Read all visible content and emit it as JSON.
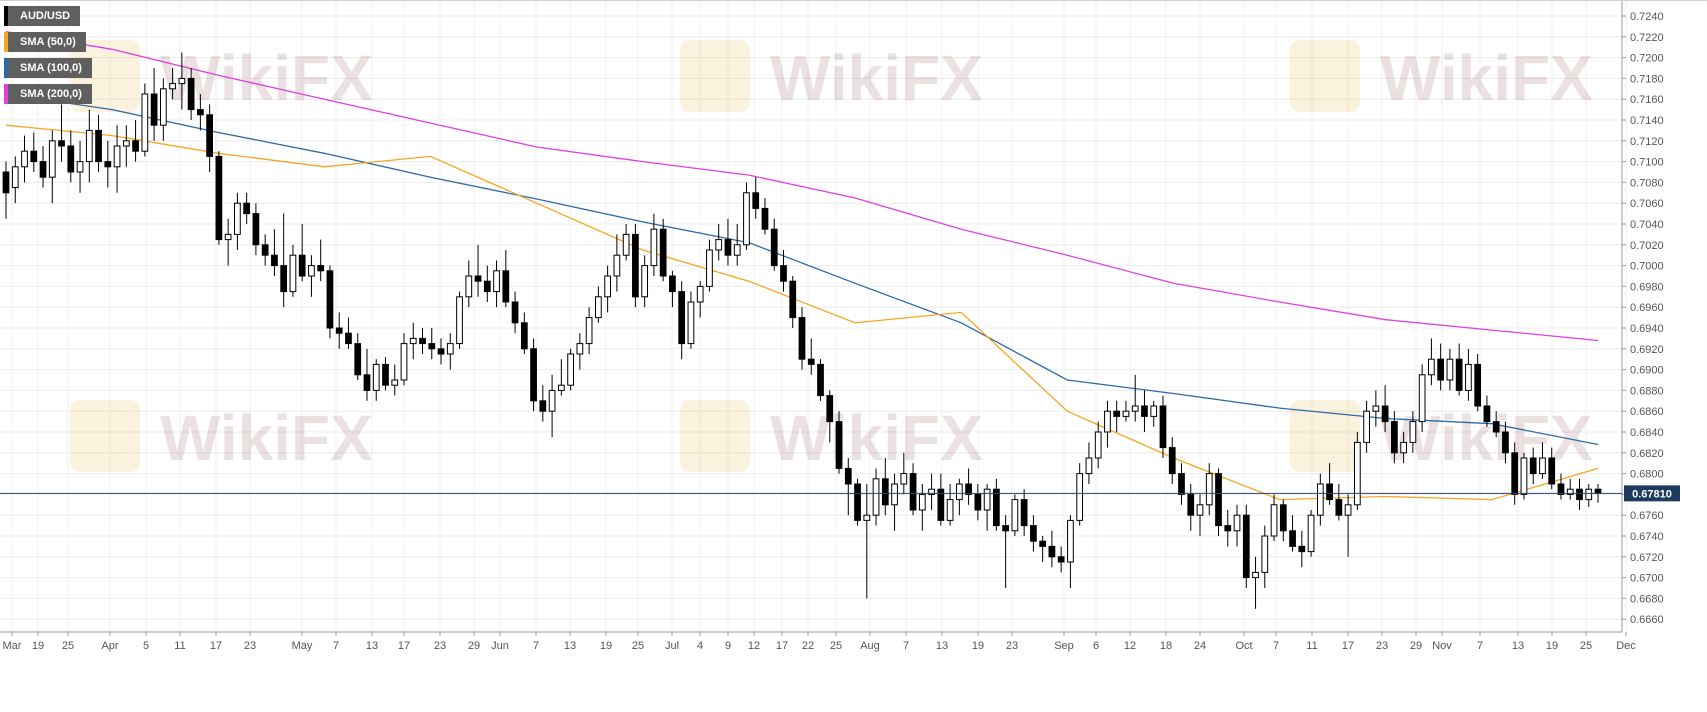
{
  "legend": [
    {
      "label": "AUD/USD",
      "color": "#000000"
    },
    {
      "label": "SMA (50,0)",
      "color": "#f5a623"
    },
    {
      "label": "SMA (100,0)",
      "color": "#2e6aa8"
    },
    {
      "label": "SMA (200,0)",
      "color": "#e040e0"
    }
  ],
  "watermark": "WikiFX",
  "chart_data": {
    "type": "candlestick",
    "symbol": "AUD/USD",
    "ylim": [
      0.665,
      0.725
    ],
    "y_ticks": [
      "0.7240",
      "0.7220",
      "0.7200",
      "0.7180",
      "0.7160",
      "0.7140",
      "0.7120",
      "0.7100",
      "0.7080",
      "0.7060",
      "0.7040",
      "0.7020",
      "0.7000",
      "0.6980",
      "0.6960",
      "0.6940",
      "0.6920",
      "0.6900",
      "0.6880",
      "0.6860",
      "0.6840",
      "0.6820",
      "0.6800",
      "0.6780",
      "0.6760",
      "0.6740",
      "0.6720",
      "0.6700",
      "0.6680",
      "0.6660"
    ],
    "x_ticks": [
      "Mar",
      "19",
      "25",
      "Apr",
      "5",
      "11",
      "17",
      "23",
      "May",
      "7",
      "13",
      "17",
      "23",
      "29",
      "Jun",
      "7",
      "13",
      "19",
      "25",
      "Jul",
      "4",
      "9",
      "12",
      "17",
      "22",
      "25",
      "Aug",
      "7",
      "13",
      "19",
      "23",
      "Sep",
      "6",
      "12",
      "18",
      "24",
      "Oct",
      "7",
      "11",
      "17",
      "23",
      "29",
      "Nov",
      "7",
      "13",
      "19",
      "25",
      "Dec"
    ],
    "last_price": "0.67810",
    "grid": true,
    "sma_50": [
      0.7135,
      0.7125,
      0.7108,
      0.7095,
      0.7105,
      0.706,
      0.7015,
      0.6985,
      0.6945,
      0.6955,
      0.686,
      0.6815,
      0.6775,
      0.6778,
      0.6775,
      0.6805
    ],
    "sma_100": [
      0.7165,
      0.715,
      0.7128,
      0.7108,
      0.7085,
      0.7064,
      0.7042,
      0.7022,
      0.6983,
      0.6945,
      0.689,
      0.6877,
      0.6863,
      0.6853,
      0.6848,
      0.6828
    ],
    "sma_200": [
      0.7225,
      0.7208,
      0.7183,
      0.716,
      0.7137,
      0.7114,
      0.71,
      0.7087,
      0.7065,
      0.7035,
      0.701,
      0.6983,
      0.6965,
      0.6948,
      0.6938,
      0.6928
    ],
    "candles": [
      {
        "o": 0.709,
        "h": 0.71,
        "l": 0.7045,
        "c": 0.707
      },
      {
        "o": 0.7075,
        "h": 0.7105,
        "l": 0.706,
        "c": 0.7095
      },
      {
        "o": 0.7095,
        "h": 0.7125,
        "l": 0.708,
        "c": 0.711
      },
      {
        "o": 0.711,
        "h": 0.7128,
        "l": 0.709,
        "c": 0.71
      },
      {
        "o": 0.71,
        "h": 0.7115,
        "l": 0.7075,
        "c": 0.7085
      },
      {
        "o": 0.7085,
        "h": 0.713,
        "l": 0.706,
        "c": 0.712
      },
      {
        "o": 0.712,
        "h": 0.7155,
        "l": 0.71,
        "c": 0.7115
      },
      {
        "o": 0.7115,
        "h": 0.713,
        "l": 0.708,
        "c": 0.709
      },
      {
        "o": 0.709,
        "h": 0.712,
        "l": 0.707,
        "c": 0.71
      },
      {
        "o": 0.71,
        "h": 0.715,
        "l": 0.708,
        "c": 0.713
      },
      {
        "o": 0.713,
        "h": 0.7145,
        "l": 0.709,
        "c": 0.71
      },
      {
        "o": 0.71,
        "h": 0.712,
        "l": 0.7075,
        "c": 0.7095
      },
      {
        "o": 0.7095,
        "h": 0.7135,
        "l": 0.707,
        "c": 0.7115
      },
      {
        "o": 0.7115,
        "h": 0.7135,
        "l": 0.7095,
        "c": 0.712
      },
      {
        "o": 0.712,
        "h": 0.714,
        "l": 0.71,
        "c": 0.711
      },
      {
        "o": 0.711,
        "h": 0.7175,
        "l": 0.7105,
        "c": 0.7165
      },
      {
        "o": 0.7165,
        "h": 0.719,
        "l": 0.712,
        "c": 0.7135
      },
      {
        "o": 0.7135,
        "h": 0.718,
        "l": 0.712,
        "c": 0.717
      },
      {
        "o": 0.717,
        "h": 0.719,
        "l": 0.716,
        "c": 0.7175
      },
      {
        "o": 0.7175,
        "h": 0.7205,
        "l": 0.715,
        "c": 0.718
      },
      {
        "o": 0.718,
        "h": 0.719,
        "l": 0.714,
        "c": 0.715
      },
      {
        "o": 0.715,
        "h": 0.7165,
        "l": 0.713,
        "c": 0.7145
      },
      {
        "o": 0.7145,
        "h": 0.7155,
        "l": 0.709,
        "c": 0.7105
      },
      {
        "o": 0.7105,
        "h": 0.711,
        "l": 0.702,
        "c": 0.7025
      },
      {
        "o": 0.7025,
        "h": 0.7045,
        "l": 0.7,
        "c": 0.703
      },
      {
        "o": 0.703,
        "h": 0.707,
        "l": 0.7015,
        "c": 0.706
      },
      {
        "o": 0.706,
        "h": 0.707,
        "l": 0.704,
        "c": 0.705
      },
      {
        "o": 0.705,
        "h": 0.706,
        "l": 0.701,
        "c": 0.702
      },
      {
        "o": 0.702,
        "h": 0.703,
        "l": 0.7,
        "c": 0.701
      },
      {
        "o": 0.701,
        "h": 0.7035,
        "l": 0.699,
        "c": 0.7
      },
      {
        "o": 0.7,
        "h": 0.705,
        "l": 0.696,
        "c": 0.6975
      },
      {
        "o": 0.6975,
        "h": 0.702,
        "l": 0.697,
        "c": 0.701
      },
      {
        "o": 0.701,
        "h": 0.704,
        "l": 0.6985,
        "c": 0.699
      },
      {
        "o": 0.699,
        "h": 0.701,
        "l": 0.697,
        "c": 0.7
      },
      {
        "o": 0.7,
        "h": 0.7025,
        "l": 0.6985,
        "c": 0.6995
      },
      {
        "o": 0.6995,
        "h": 0.7,
        "l": 0.693,
        "c": 0.694
      },
      {
        "o": 0.694,
        "h": 0.6955,
        "l": 0.692,
        "c": 0.6935
      },
      {
        "o": 0.6935,
        "h": 0.695,
        "l": 0.692,
        "c": 0.6925
      },
      {
        "o": 0.6925,
        "h": 0.6935,
        "l": 0.689,
        "c": 0.6895
      },
      {
        "o": 0.6895,
        "h": 0.692,
        "l": 0.687,
        "c": 0.688
      },
      {
        "o": 0.688,
        "h": 0.691,
        "l": 0.687,
        "c": 0.6905
      },
      {
        "o": 0.6905,
        "h": 0.6912,
        "l": 0.688,
        "c": 0.6885
      },
      {
        "o": 0.6885,
        "h": 0.6905,
        "l": 0.6875,
        "c": 0.689
      },
      {
        "o": 0.689,
        "h": 0.6935,
        "l": 0.6885,
        "c": 0.6925
      },
      {
        "o": 0.6925,
        "h": 0.6945,
        "l": 0.691,
        "c": 0.693
      },
      {
        "o": 0.693,
        "h": 0.694,
        "l": 0.6915,
        "c": 0.6925
      },
      {
        "o": 0.6925,
        "h": 0.694,
        "l": 0.691,
        "c": 0.692
      },
      {
        "o": 0.692,
        "h": 0.693,
        "l": 0.6905,
        "c": 0.6915
      },
      {
        "o": 0.6915,
        "h": 0.6935,
        "l": 0.69,
        "c": 0.6925
      },
      {
        "o": 0.6925,
        "h": 0.6975,
        "l": 0.692,
        "c": 0.697
      },
      {
        "o": 0.697,
        "h": 0.7005,
        "l": 0.696,
        "c": 0.699
      },
      {
        "o": 0.699,
        "h": 0.702,
        "l": 0.697,
        "c": 0.6985
      },
      {
        "o": 0.6985,
        "h": 0.7,
        "l": 0.6965,
        "c": 0.6975
      },
      {
        "o": 0.6975,
        "h": 0.7005,
        "l": 0.696,
        "c": 0.6995
      },
      {
        "o": 0.6995,
        "h": 0.7015,
        "l": 0.696,
        "c": 0.6965
      },
      {
        "o": 0.6965,
        "h": 0.6975,
        "l": 0.6935,
        "c": 0.6945
      },
      {
        "o": 0.6945,
        "h": 0.6955,
        "l": 0.6915,
        "c": 0.692
      },
      {
        "o": 0.692,
        "h": 0.693,
        "l": 0.686,
        "c": 0.687
      },
      {
        "o": 0.687,
        "h": 0.6885,
        "l": 0.685,
        "c": 0.686
      },
      {
        "o": 0.686,
        "h": 0.6895,
        "l": 0.6835,
        "c": 0.688
      },
      {
        "o": 0.688,
        "h": 0.691,
        "l": 0.6875,
        "c": 0.6885
      },
      {
        "o": 0.6885,
        "h": 0.692,
        "l": 0.688,
        "c": 0.6915
      },
      {
        "o": 0.6915,
        "h": 0.6935,
        "l": 0.69,
        "c": 0.6925
      },
      {
        "o": 0.6925,
        "h": 0.696,
        "l": 0.6915,
        "c": 0.695
      },
      {
        "o": 0.695,
        "h": 0.698,
        "l": 0.6945,
        "c": 0.697
      },
      {
        "o": 0.697,
        "h": 0.7,
        "l": 0.6955,
        "c": 0.699
      },
      {
        "o": 0.699,
        "h": 0.703,
        "l": 0.6975,
        "c": 0.701
      },
      {
        "o": 0.701,
        "h": 0.704,
        "l": 0.7005,
        "c": 0.703
      },
      {
        "o": 0.703,
        "h": 0.704,
        "l": 0.696,
        "c": 0.697
      },
      {
        "o": 0.697,
        "h": 0.701,
        "l": 0.696,
        "c": 0.7
      },
      {
        "o": 0.7,
        "h": 0.705,
        "l": 0.699,
        "c": 0.7035
      },
      {
        "o": 0.7035,
        "h": 0.7045,
        "l": 0.6985,
        "c": 0.699
      },
      {
        "o": 0.699,
        "h": 0.6995,
        "l": 0.696,
        "c": 0.6975
      },
      {
        "o": 0.6975,
        "h": 0.6985,
        "l": 0.691,
        "c": 0.6925
      },
      {
        "o": 0.6925,
        "h": 0.6975,
        "l": 0.692,
        "c": 0.6965
      },
      {
        "o": 0.6965,
        "h": 0.6985,
        "l": 0.695,
        "c": 0.698
      },
      {
        "o": 0.698,
        "h": 0.7025,
        "l": 0.6975,
        "c": 0.7015
      },
      {
        "o": 0.7015,
        "h": 0.704,
        "l": 0.7005,
        "c": 0.7025
      },
      {
        "o": 0.7025,
        "h": 0.7045,
        "l": 0.7,
        "c": 0.701
      },
      {
        "o": 0.701,
        "h": 0.704,
        "l": 0.7,
        "c": 0.702
      },
      {
        "o": 0.702,
        "h": 0.708,
        "l": 0.7015,
        "c": 0.707
      },
      {
        "o": 0.707,
        "h": 0.7085,
        "l": 0.7045,
        "c": 0.7055
      },
      {
        "o": 0.7055,
        "h": 0.7065,
        "l": 0.703,
        "c": 0.7035
      },
      {
        "o": 0.7035,
        "h": 0.7045,
        "l": 0.6995,
        "c": 0.7
      },
      {
        "o": 0.7,
        "h": 0.7015,
        "l": 0.6975,
        "c": 0.6985
      },
      {
        "o": 0.6985,
        "h": 0.699,
        "l": 0.694,
        "c": 0.695
      },
      {
        "o": 0.695,
        "h": 0.696,
        "l": 0.69,
        "c": 0.691
      },
      {
        "o": 0.691,
        "h": 0.693,
        "l": 0.6895,
        "c": 0.6905
      },
      {
        "o": 0.6905,
        "h": 0.691,
        "l": 0.687,
        "c": 0.6875
      },
      {
        "o": 0.6875,
        "h": 0.688,
        "l": 0.683,
        "c": 0.685
      },
      {
        "o": 0.685,
        "h": 0.686,
        "l": 0.68,
        "c": 0.6805
      },
      {
        "o": 0.6805,
        "h": 0.6815,
        "l": 0.676,
        "c": 0.679
      },
      {
        "o": 0.679,
        "h": 0.6795,
        "l": 0.675,
        "c": 0.6755
      },
      {
        "o": 0.6755,
        "h": 0.679,
        "l": 0.668,
        "c": 0.676
      },
      {
        "o": 0.676,
        "h": 0.6805,
        "l": 0.675,
        "c": 0.6795
      },
      {
        "o": 0.6795,
        "h": 0.6815,
        "l": 0.676,
        "c": 0.677
      },
      {
        "o": 0.677,
        "h": 0.68,
        "l": 0.6745,
        "c": 0.679
      },
      {
        "o": 0.679,
        "h": 0.682,
        "l": 0.678,
        "c": 0.68
      },
      {
        "o": 0.68,
        "h": 0.681,
        "l": 0.676,
        "c": 0.6765
      },
      {
        "o": 0.6765,
        "h": 0.679,
        "l": 0.6745,
        "c": 0.678
      },
      {
        "o": 0.678,
        "h": 0.68,
        "l": 0.6765,
        "c": 0.6785
      },
      {
        "o": 0.6785,
        "h": 0.68,
        "l": 0.675,
        "c": 0.6755
      },
      {
        "o": 0.6755,
        "h": 0.679,
        "l": 0.675,
        "c": 0.6775
      },
      {
        "o": 0.6775,
        "h": 0.6795,
        "l": 0.676,
        "c": 0.679
      },
      {
        "o": 0.679,
        "h": 0.6805,
        "l": 0.677,
        "c": 0.678
      },
      {
        "o": 0.678,
        "h": 0.679,
        "l": 0.6755,
        "c": 0.6765
      },
      {
        "o": 0.6765,
        "h": 0.679,
        "l": 0.6745,
        "c": 0.6785
      },
      {
        "o": 0.6785,
        "h": 0.6795,
        "l": 0.6745,
        "c": 0.675
      },
      {
        "o": 0.675,
        "h": 0.676,
        "l": 0.669,
        "c": 0.6745
      },
      {
        "o": 0.6745,
        "h": 0.678,
        "l": 0.674,
        "c": 0.6775
      },
      {
        "o": 0.6775,
        "h": 0.6785,
        "l": 0.674,
        "c": 0.675
      },
      {
        "o": 0.675,
        "h": 0.676,
        "l": 0.6725,
        "c": 0.6735
      },
      {
        "o": 0.6735,
        "h": 0.674,
        "l": 0.6715,
        "c": 0.673
      },
      {
        "o": 0.673,
        "h": 0.6745,
        "l": 0.671,
        "c": 0.672
      },
      {
        "o": 0.672,
        "h": 0.673,
        "l": 0.6705,
        "c": 0.6715
      },
      {
        "o": 0.6715,
        "h": 0.676,
        "l": 0.669,
        "c": 0.6755
      },
      {
        "o": 0.6755,
        "h": 0.681,
        "l": 0.675,
        "c": 0.68
      },
      {
        "o": 0.68,
        "h": 0.683,
        "l": 0.679,
        "c": 0.6815
      },
      {
        "o": 0.6815,
        "h": 0.685,
        "l": 0.6805,
        "c": 0.684
      },
      {
        "o": 0.684,
        "h": 0.687,
        "l": 0.6825,
        "c": 0.686
      },
      {
        "o": 0.686,
        "h": 0.687,
        "l": 0.684,
        "c": 0.6855
      },
      {
        "o": 0.6855,
        "h": 0.687,
        "l": 0.685,
        "c": 0.686
      },
      {
        "o": 0.686,
        "h": 0.6895,
        "l": 0.685,
        "c": 0.6865
      },
      {
        "o": 0.6865,
        "h": 0.688,
        "l": 0.684,
        "c": 0.6855
      },
      {
        "o": 0.6855,
        "h": 0.687,
        "l": 0.6845,
        "c": 0.6865
      },
      {
        "o": 0.6865,
        "h": 0.6875,
        "l": 0.6815,
        "c": 0.6825
      },
      {
        "o": 0.6825,
        "h": 0.6835,
        "l": 0.679,
        "c": 0.68
      },
      {
        "o": 0.68,
        "h": 0.681,
        "l": 0.677,
        "c": 0.678
      },
      {
        "o": 0.678,
        "h": 0.679,
        "l": 0.6745,
        "c": 0.676
      },
      {
        "o": 0.676,
        "h": 0.678,
        "l": 0.674,
        "c": 0.677
      },
      {
        "o": 0.677,
        "h": 0.681,
        "l": 0.676,
        "c": 0.68
      },
      {
        "o": 0.68,
        "h": 0.6805,
        "l": 0.674,
        "c": 0.675
      },
      {
        "o": 0.675,
        "h": 0.6765,
        "l": 0.673,
        "c": 0.6745
      },
      {
        "o": 0.6745,
        "h": 0.677,
        "l": 0.673,
        "c": 0.676
      },
      {
        "o": 0.676,
        "h": 0.677,
        "l": 0.669,
        "c": 0.67
      },
      {
        "o": 0.67,
        "h": 0.672,
        "l": 0.667,
        "c": 0.6705
      },
      {
        "o": 0.6705,
        "h": 0.675,
        "l": 0.669,
        "c": 0.674
      },
      {
        "o": 0.674,
        "h": 0.678,
        "l": 0.6735,
        "c": 0.677
      },
      {
        "o": 0.677,
        "h": 0.6775,
        "l": 0.6735,
        "c": 0.6745
      },
      {
        "o": 0.6745,
        "h": 0.676,
        "l": 0.6725,
        "c": 0.673
      },
      {
        "o": 0.673,
        "h": 0.6745,
        "l": 0.671,
        "c": 0.6725
      },
      {
        "o": 0.6725,
        "h": 0.6765,
        "l": 0.672,
        "c": 0.676
      },
      {
        "o": 0.676,
        "h": 0.68,
        "l": 0.675,
        "c": 0.679
      },
      {
        "o": 0.679,
        "h": 0.681,
        "l": 0.677,
        "c": 0.6775
      },
      {
        "o": 0.6775,
        "h": 0.679,
        "l": 0.6755,
        "c": 0.676
      },
      {
        "o": 0.676,
        "h": 0.678,
        "l": 0.672,
        "c": 0.677
      },
      {
        "o": 0.677,
        "h": 0.684,
        "l": 0.6765,
        "c": 0.683
      },
      {
        "o": 0.683,
        "h": 0.687,
        "l": 0.682,
        "c": 0.686
      },
      {
        "o": 0.686,
        "h": 0.688,
        "l": 0.6845,
        "c": 0.6865
      },
      {
        "o": 0.6865,
        "h": 0.6885,
        "l": 0.684,
        "c": 0.685
      },
      {
        "o": 0.685,
        "h": 0.686,
        "l": 0.681,
        "c": 0.682
      },
      {
        "o": 0.682,
        "h": 0.684,
        "l": 0.681,
        "c": 0.683
      },
      {
        "o": 0.683,
        "h": 0.686,
        "l": 0.682,
        "c": 0.685
      },
      {
        "o": 0.685,
        "h": 0.6905,
        "l": 0.684,
        "c": 0.6895
      },
      {
        "o": 0.6895,
        "h": 0.693,
        "l": 0.6885,
        "c": 0.691
      },
      {
        "o": 0.691,
        "h": 0.6925,
        "l": 0.688,
        "c": 0.689
      },
      {
        "o": 0.689,
        "h": 0.692,
        "l": 0.688,
        "c": 0.691
      },
      {
        "o": 0.691,
        "h": 0.6925,
        "l": 0.6875,
        "c": 0.688
      },
      {
        "o": 0.688,
        "h": 0.692,
        "l": 0.687,
        "c": 0.6905
      },
      {
        "o": 0.6905,
        "h": 0.6915,
        "l": 0.686,
        "c": 0.6865
      },
      {
        "o": 0.6865,
        "h": 0.6875,
        "l": 0.6845,
        "c": 0.685
      },
      {
        "o": 0.685,
        "h": 0.686,
        "l": 0.6835,
        "c": 0.684
      },
      {
        "o": 0.684,
        "h": 0.685,
        "l": 0.681,
        "c": 0.682
      },
      {
        "o": 0.682,
        "h": 0.683,
        "l": 0.677,
        "c": 0.678
      },
      {
        "o": 0.678,
        "h": 0.682,
        "l": 0.6775,
        "c": 0.6815
      },
      {
        "o": 0.6815,
        "h": 0.6825,
        "l": 0.679,
        "c": 0.68
      },
      {
        "o": 0.68,
        "h": 0.683,
        "l": 0.6795,
        "c": 0.6815
      },
      {
        "o": 0.6815,
        "h": 0.6825,
        "l": 0.6785,
        "c": 0.679
      },
      {
        "o": 0.679,
        "h": 0.68,
        "l": 0.6775,
        "c": 0.678
      },
      {
        "o": 0.678,
        "h": 0.6795,
        "l": 0.6775,
        "c": 0.6785
      },
      {
        "o": 0.6785,
        "h": 0.6795,
        "l": 0.6765,
        "c": 0.6775
      },
      {
        "o": 0.6775,
        "h": 0.679,
        "l": 0.6768,
        "c": 0.6785
      },
      {
        "o": 0.6785,
        "h": 0.679,
        "l": 0.6772,
        "c": 0.6781
      }
    ]
  }
}
